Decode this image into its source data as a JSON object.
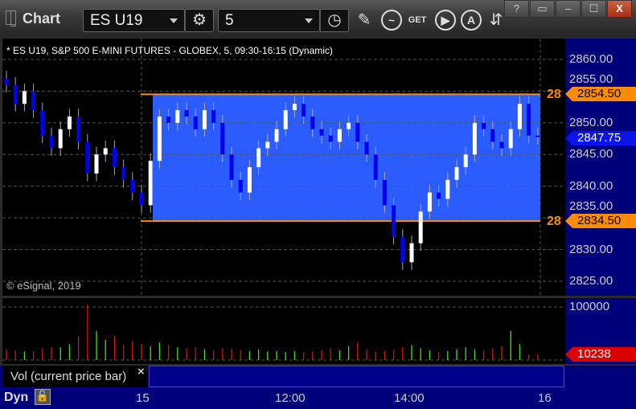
{
  "window": {
    "title": "Chart",
    "buttons": [
      "?",
      "▭",
      "–",
      "☐",
      "X"
    ]
  },
  "toolbar": {
    "symbol": "ES U19",
    "interval": "5",
    "get_label": "GET"
  },
  "chart": {
    "header": "* ES U19, S&P 500 E-MINI FUTURES - GLOBEX, 5, 09:30-16:15 (Dynamic)",
    "copyright": "© eSignal, 2019",
    "price_ticks": [
      "2860.00",
      "2855.00",
      "2850.00",
      "2845.00",
      "2840.00",
      "2835.00",
      "2830.00",
      "2825.00"
    ],
    "price_tick_values": [
      2860,
      2855,
      2850,
      2845,
      2840,
      2835,
      2830,
      2825
    ],
    "last_price": "2847.75",
    "zone": {
      "top": "2854.50",
      "bottom": "2834.50",
      "top_value": 2854.5,
      "bottom_value": 2834.5,
      "edge_label": "28",
      "fill": "#2a5cff",
      "line": "#ff8c00"
    },
    "closes": [
      2856,
      2853,
      2855,
      2852,
      2848,
      2846,
      2849,
      2851,
      2847,
      2842,
      2845,
      2846,
      2843,
      2841,
      2839,
      2837,
      2844,
      2851,
      2850,
      2852,
      2851,
      2849,
      2852,
      2850,
      2845,
      2841,
      2839,
      2843,
      2846,
      2847,
      2849,
      2852,
      2853,
      2851,
      2849,
      2848,
      2847,
      2849,
      2850,
      2847,
      2845,
      2841,
      2837,
      2832,
      2828,
      2831,
      2836,
      2839,
      2838,
      2841,
      2843,
      2845,
      2850,
      2849,
      2847,
      2846,
      2849,
      2853,
      2848,
      2847.75
    ],
    "up_color": "#ffffff",
    "down_color": "#0000ee"
  },
  "volume": {
    "label": "Vol (current price bar)",
    "close_icon": "×",
    "ticks": [
      "100000",
      "0"
    ],
    "last": "10238",
    "values": [
      20000,
      18000,
      16000,
      17000,
      21000,
      24000,
      24000,
      30000,
      44000,
      105000,
      55000,
      38000,
      45000,
      28000,
      35000,
      30000,
      26000,
      33000,
      28000,
      24000,
      22000,
      24000,
      20000,
      19000,
      22000,
      21000,
      18000,
      17000,
      20000,
      16000,
      17000,
      15000,
      17000,
      14000,
      16000,
      18000,
      22000,
      18000,
      26000,
      33000,
      20000,
      16000,
      17000,
      19000,
      24000,
      28000,
      22000,
      18000,
      15000,
      17000,
      20000,
      24000,
      20000,
      19000,
      22000,
      26000,
      55000,
      30000,
      10238,
      10238
    ],
    "up_color": "#44dd22",
    "down_color": "#dd1111"
  },
  "time_axis": {
    "scale_mode": "Dyn",
    "labels": [
      "15",
      "12:00",
      "14:00",
      "16"
    ]
  }
}
